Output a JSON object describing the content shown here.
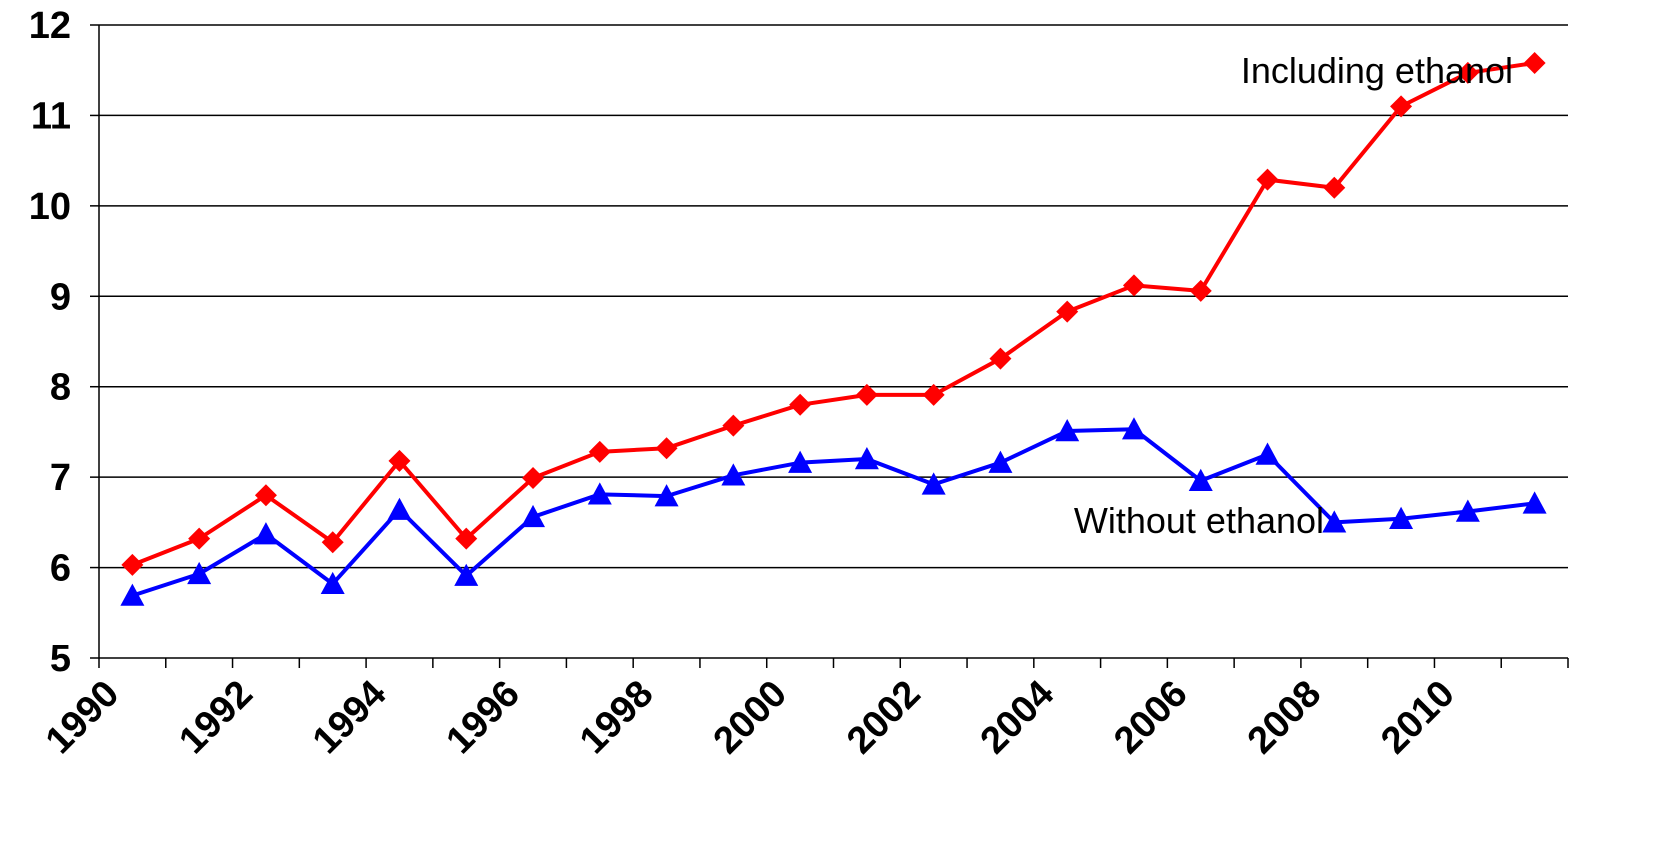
{
  "chart_data": {
    "type": "line",
    "title": "",
    "xlabel": "",
    "ylabel": "",
    "ylim": [
      5,
      12
    ],
    "yticks": [
      5,
      6,
      7,
      8,
      9,
      10,
      11,
      12
    ],
    "xlim": [
      1990,
      2012
    ],
    "xtick_labels": [
      "1990",
      "1992",
      "1994",
      "1996",
      "1998",
      "2000",
      "2002",
      "2004",
      "2006",
      "2008",
      "2010"
    ],
    "grid": "horizontal",
    "x": [
      1990.5,
      1991.5,
      1992.5,
      1993.5,
      1994.5,
      1995.5,
      1996.5,
      1997.5,
      1998.5,
      1999.5,
      2000.5,
      2001.5,
      2002.5,
      2003.5,
      2004.5,
      2005.5,
      2006.5,
      2007.5,
      2008.5,
      2009.5,
      2010.5,
      2011.5
    ],
    "series": [
      {
        "name": "Including ethanol",
        "color": "#ff0000",
        "marker": "diamond",
        "values": [
          6.03,
          6.32,
          6.8,
          6.28,
          7.18,
          6.32,
          6.99,
          7.28,
          7.32,
          7.57,
          7.8,
          7.91,
          7.91,
          8.31,
          8.83,
          9.12,
          9.06,
          10.29,
          10.2,
          11.1,
          11.47,
          11.58
        ]
      },
      {
        "name": "Without ethanol",
        "color": "#0000ff",
        "marker": "triangle",
        "values": [
          5.69,
          5.93,
          6.37,
          5.82,
          6.64,
          5.91,
          6.56,
          6.81,
          6.79,
          7.02,
          7.16,
          7.2,
          6.92,
          7.16,
          7.51,
          7.53,
          6.96,
          7.25,
          6.5,
          6.54,
          6.62,
          6.71
        ]
      }
    ],
    "annotations": [
      {
        "text": "Including ethanol",
        "x": 2007.1,
        "y": 11.36
      },
      {
        "text": "Without ethanol",
        "x": 2004.6,
        "y": 6.38
      }
    ]
  }
}
